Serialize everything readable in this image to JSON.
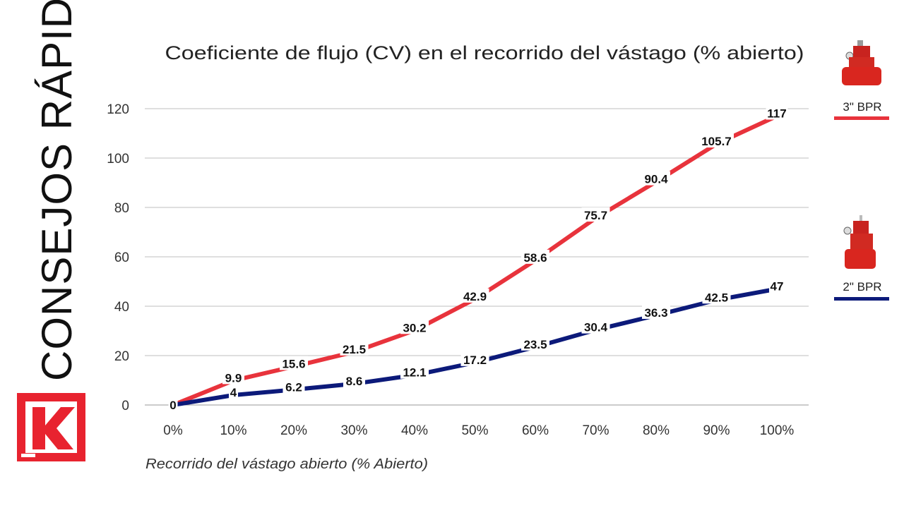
{
  "side_title": "CONSEJOS RÁPIDOS",
  "logo_text": "K",
  "colors": {
    "series1": "#e8333c",
    "series2": "#0c1a7a",
    "grid": "#bfbfbf",
    "brand": "#e8232f"
  },
  "chart_data": {
    "type": "line",
    "title": "Coeficiente de flujo (CV) en el recorrido del vástago (% abierto)",
    "xlabel": "Recorrido del vástago abierto (% Abierto)",
    "ylabel": "",
    "categories": [
      "0%",
      "10%",
      "20%",
      "30%",
      "40%",
      "50%",
      "60%",
      "70%",
      "80%",
      "90%",
      "100%"
    ],
    "ylim": [
      0,
      120
    ],
    "yticks": [
      0,
      20,
      40,
      60,
      80,
      100,
      120
    ],
    "grid": true,
    "legend_placement": "right",
    "series": [
      {
        "name": "3\" BPR",
        "values": [
          0,
          9.9,
          15.6,
          21.5,
          30.2,
          42.9,
          58.6,
          75.7,
          90.4,
          105.7,
          117
        ],
        "labels": [
          "0",
          "9.9",
          "15.6",
          "21.5",
          "30.2",
          "42.9",
          "58.6",
          "75.7",
          "90.4",
          "105.7",
          "117"
        ]
      },
      {
        "name": "2\" BPR",
        "values": [
          0,
          4,
          6.2,
          8.6,
          12.1,
          17.2,
          23.5,
          30.4,
          36.3,
          42.5,
          47
        ],
        "labels": [
          "0",
          "4",
          "6.2",
          "8.6",
          "12.1",
          "17.2",
          "23.5",
          "30.4",
          "36.3",
          "42.5",
          "47"
        ]
      }
    ]
  }
}
